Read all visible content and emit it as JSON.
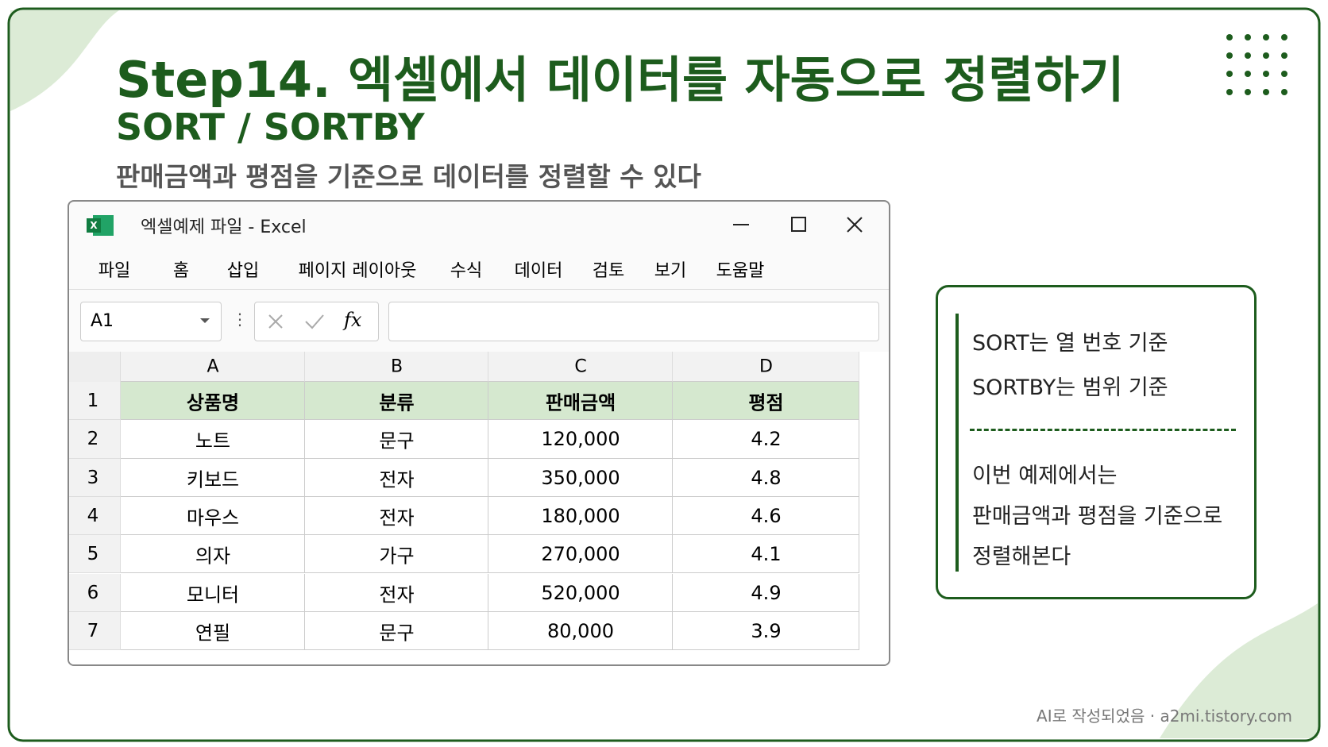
{
  "header": {
    "title": "Step14. 엑셀에서 데이터를 자동으로 정렬하기",
    "subtitle": "SORT  /  SORTBY",
    "description": "판매금액과 평점을 기준으로 데이터를 정렬할 수 있다"
  },
  "window": {
    "title": "엑셀예제 파일 - Excel",
    "menu": [
      "파일",
      "홈",
      "삽입",
      "페이지 레이아웃",
      "수식",
      "데이터",
      "검토",
      "보기",
      "도움말"
    ],
    "name_box": "A1",
    "formula_icon": "fx"
  },
  "table": {
    "columns": [
      "A",
      "B",
      "C",
      "D"
    ],
    "row_numbers": [
      "1",
      "2",
      "3",
      "4",
      "5",
      "6",
      "7"
    ],
    "rows": [
      [
        "상품명",
        "분류",
        "판매금액",
        "평점"
      ],
      [
        "노트",
        "문구",
        "120,000",
        "4.2"
      ],
      [
        "키보드",
        "전자",
        "350,000",
        "4.8"
      ],
      [
        "마우스",
        "전자",
        "180,000",
        "4.6"
      ],
      [
        "의자",
        "가구",
        "270,000",
        "4.1"
      ],
      [
        "모니터",
        "전자",
        "520,000",
        "4.9"
      ],
      [
        "연필",
        "문구",
        "80,000",
        "3.9"
      ]
    ]
  },
  "note": {
    "top": [
      "SORT는 열 번호 기준",
      "SORTBY는 범위 기준"
    ],
    "bottom": [
      "이번 예제에서는",
      "판매금액과 평점을 기준으로",
      "정렬해본다"
    ]
  },
  "footer": "AI로 작성되었음 · a2mi.tistory.com"
}
